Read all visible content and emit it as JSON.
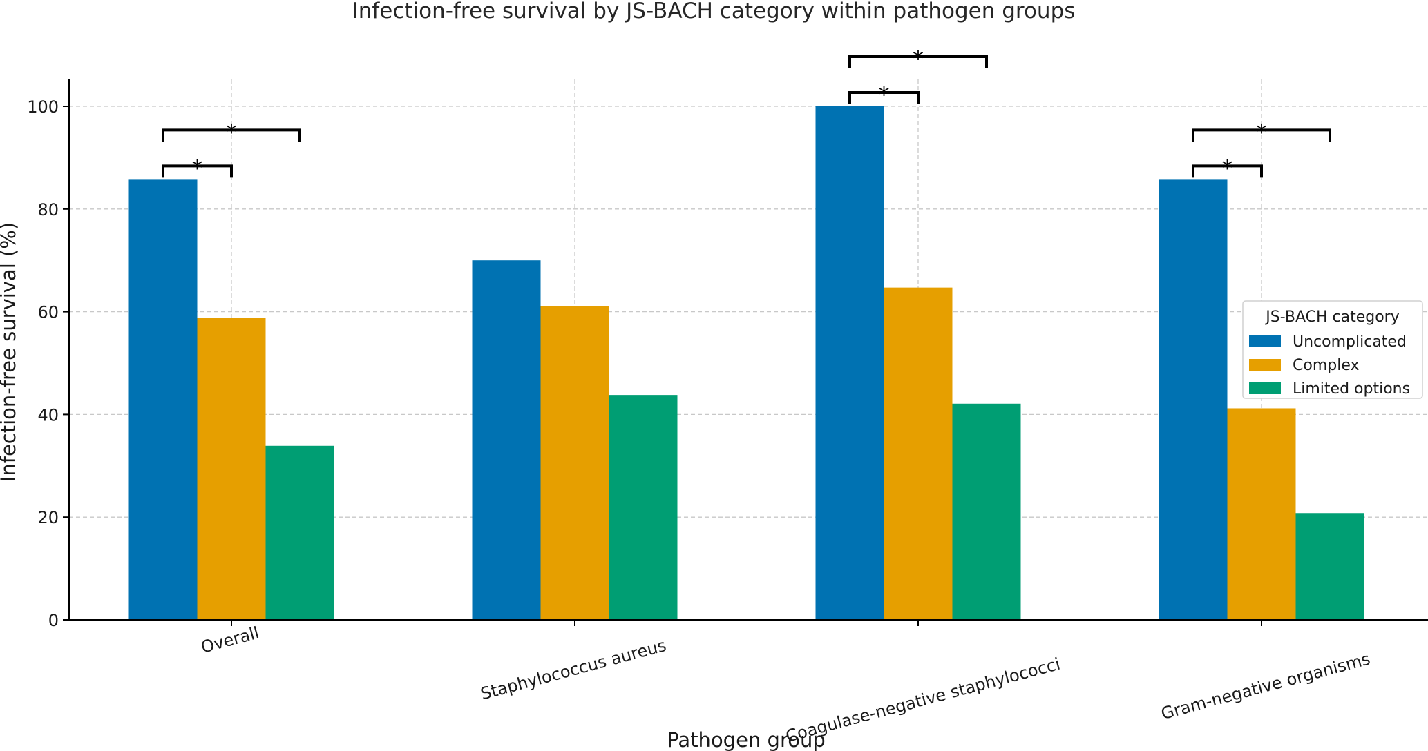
{
  "chart_data": {
    "type": "bar",
    "title": "Infection-free survival by JS-BACH category within pathogen groups",
    "xlabel": "Pathogen group",
    "ylabel": "Infection-free survival (%)",
    "ylim": [
      0,
      105
    ],
    "yticks": [
      0,
      20,
      40,
      60,
      80,
      100
    ],
    "grid": true,
    "categories": [
      "Overall",
      "Staphylococcus aureus",
      "Coagulase-negative staphylococci",
      "Gram-negative organisms"
    ],
    "series": [
      {
        "name": "Uncomplicated",
        "color": "#0072B2",
        "values": [
          85.7,
          70.0,
          100.0,
          85.7
        ]
      },
      {
        "name": "Complex",
        "color": "#E69F00",
        "values": [
          58.8,
          61.1,
          64.7,
          41.2
        ]
      },
      {
        "name": "Limited options",
        "color": "#009E73",
        "values": [
          33.9,
          43.8,
          42.1,
          20.8
        ]
      }
    ],
    "legend": {
      "title": "JS-BACH category",
      "placement": "center-right"
    },
    "significance": [
      {
        "category": 0,
        "from": "Uncomplicated",
        "to": "Complex",
        "label": "*"
      },
      {
        "category": 0,
        "from": "Uncomplicated",
        "to": "Limited options",
        "label": "*"
      },
      {
        "category": 2,
        "from": "Uncomplicated",
        "to": "Complex",
        "label": "*"
      },
      {
        "category": 2,
        "from": "Uncomplicated",
        "to": "Limited options",
        "label": "*"
      },
      {
        "category": 3,
        "from": "Uncomplicated",
        "to": "Complex",
        "label": "*"
      },
      {
        "category": 3,
        "from": "Uncomplicated",
        "to": "Limited options",
        "label": "*"
      }
    ]
  }
}
